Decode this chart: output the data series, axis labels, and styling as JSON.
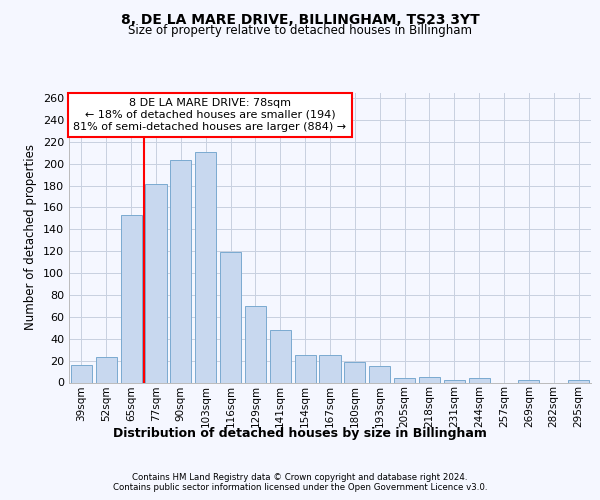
{
  "title1": "8, DE LA MARE DRIVE, BILLINGHAM, TS23 3YT",
  "title2": "Size of property relative to detached houses in Billingham",
  "xlabel": "Distribution of detached houses by size in Billingham",
  "ylabel": "Number of detached properties",
  "categories": [
    "39sqm",
    "52sqm",
    "65sqm",
    "77sqm",
    "90sqm",
    "103sqm",
    "116sqm",
    "129sqm",
    "141sqm",
    "154sqm",
    "167sqm",
    "180sqm",
    "193sqm",
    "205sqm",
    "218sqm",
    "231sqm",
    "244sqm",
    "257sqm",
    "269sqm",
    "282sqm",
    "295sqm"
  ],
  "values": [
    16,
    23,
    153,
    181,
    203,
    211,
    119,
    70,
    48,
    25,
    25,
    19,
    15,
    4,
    5,
    2,
    4,
    0,
    2,
    0,
    2
  ],
  "bar_color": "#c8d8ef",
  "bar_edge_color": "#7aaad0",
  "property_sqm": 78,
  "pct_smaller": 18,
  "n_smaller": 194,
  "pct_larger_semi": 81,
  "n_larger_semi": 884,
  "vline_bar_index": 3,
  "ylim_max": 265,
  "yticks": [
    0,
    20,
    40,
    60,
    80,
    100,
    120,
    140,
    160,
    180,
    200,
    220,
    240,
    260
  ],
  "footer1": "Contains HM Land Registry data © Crown copyright and database right 2024.",
  "footer2": "Contains public sector information licensed under the Open Government Licence v3.0.",
  "bg_color": "#f5f7ff",
  "grid_color": "#c8d0e0"
}
